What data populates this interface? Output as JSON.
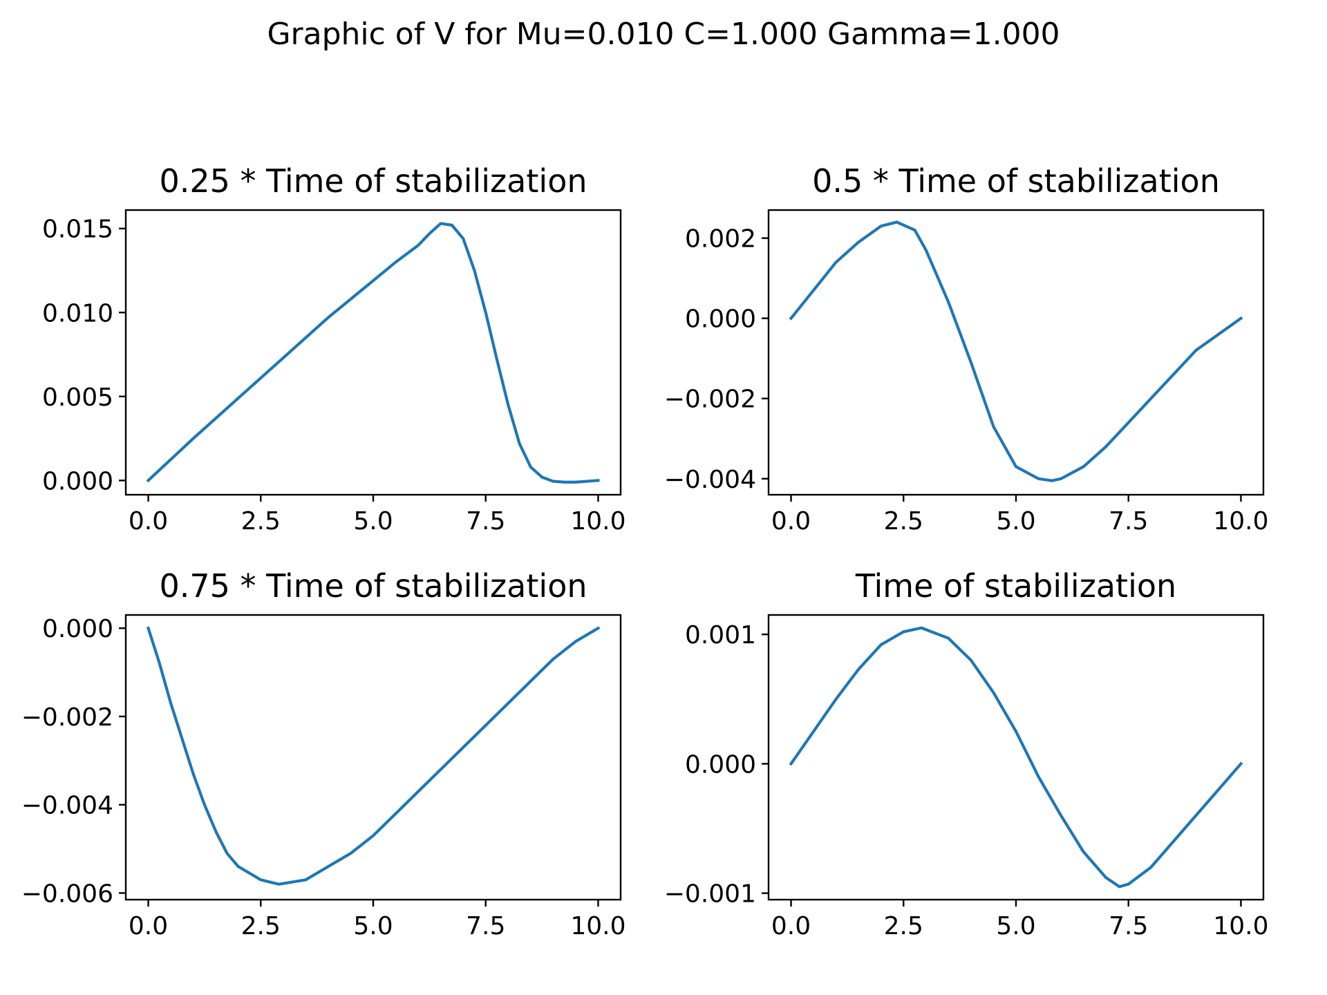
{
  "figure": {
    "suptitle": "Graphic of V for Mu=0.010 C=1.000 Gamma=1.000"
  },
  "chart_data": [
    {
      "type": "line",
      "title": "0.25 *  Time of stabilization",
      "xlabel": "",
      "ylabel": "",
      "xlim": [
        -0.5,
        10.5
      ],
      "ylim": [
        -0.00085,
        0.0161
      ],
      "xticks": [
        0.0,
        2.5,
        5.0,
        7.5,
        10.0
      ],
      "xtick_labels": [
        "0.0",
        "2.5",
        "5.0",
        "7.5",
        "10.0"
      ],
      "yticks": [
        0.0,
        0.005,
        0.01,
        0.015
      ],
      "ytick_labels": [
        "0.000",
        "0.005",
        "0.010",
        "0.015"
      ],
      "grid": false,
      "color": "#1f77b4",
      "x": [
        0,
        0.5,
        1,
        1.5,
        2,
        2.5,
        3,
        3.5,
        4,
        4.5,
        5,
        5.5,
        6,
        6.25,
        6.5,
        6.75,
        7,
        7.25,
        7.5,
        7.75,
        8,
        8.25,
        8.5,
        8.75,
        9,
        9.25,
        9.5,
        9.75,
        10
      ],
      "y": [
        0.0,
        0.00125,
        0.0025,
        0.0037,
        0.0049,
        0.0061,
        0.0073,
        0.0085,
        0.0097,
        0.0108,
        0.0119,
        0.013,
        0.014,
        0.0147,
        0.0153,
        0.0152,
        0.0144,
        0.0125,
        0.01,
        0.0072,
        0.0045,
        0.0022,
        0.0008,
        0.0002,
        -5e-05,
        -0.0001,
        -0.0001,
        -5e-05,
        0.0
      ]
    },
    {
      "type": "line",
      "title": "0.5 *  Time of stabilization",
      "xlabel": "",
      "ylabel": "",
      "xlim": [
        -0.5,
        10.5
      ],
      "ylim": [
        -0.0044,
        0.0027
      ],
      "xticks": [
        0.0,
        2.5,
        5.0,
        7.5,
        10.0
      ],
      "xtick_labels": [
        "0.0",
        "2.5",
        "5.0",
        "7.5",
        "10.0"
      ],
      "yticks": [
        -0.004,
        -0.002,
        0.0,
        0.002
      ],
      "ytick_labels": [
        "−0.004",
        "−0.002",
        "0.000",
        "0.002"
      ],
      "grid": false,
      "color": "#1f77b4",
      "x": [
        0,
        0.5,
        1,
        1.5,
        2,
        2.35,
        2.75,
        3,
        3.5,
        4,
        4.5,
        5,
        5.5,
        5.8,
        6,
        6.5,
        7,
        7.5,
        8,
        8.5,
        9,
        9.5,
        10
      ],
      "y": [
        0.0,
        0.0007,
        0.0014,
        0.0019,
        0.0023,
        0.0024,
        0.0022,
        0.0017,
        0.0004,
        -0.0011,
        -0.0027,
        -0.0037,
        -0.004,
        -0.00405,
        -0.004,
        -0.0037,
        -0.0032,
        -0.0026,
        -0.002,
        -0.0014,
        -0.0008,
        -0.0004,
        0.0
      ]
    },
    {
      "type": "line",
      "title": "0.75 *  Time of stabilization",
      "xlabel": "",
      "ylabel": "",
      "xlim": [
        -0.5,
        10.5
      ],
      "ylim": [
        -0.00615,
        0.0003
      ],
      "xticks": [
        0.0,
        2.5,
        5.0,
        7.5,
        10.0
      ],
      "xtick_labels": [
        "0.0",
        "2.5",
        "5.0",
        "7.5",
        "10.0"
      ],
      "yticks": [
        -0.006,
        -0.004,
        -0.002,
        0.0
      ],
      "ytick_labels": [
        "−0.006",
        "−0.004",
        "−0.002",
        "0.000"
      ],
      "grid": false,
      "color": "#1f77b4",
      "x": [
        0,
        0.25,
        0.5,
        0.75,
        1,
        1.25,
        1.5,
        1.75,
        2,
        2.5,
        2.9,
        3.5,
        4,
        4.5,
        5,
        5.5,
        6,
        6.5,
        7,
        7.5,
        8,
        8.5,
        9,
        9.5,
        10
      ],
      "y": [
        0.0,
        -0.0008,
        -0.0017,
        -0.0025,
        -0.0033,
        -0.004,
        -0.0046,
        -0.0051,
        -0.0054,
        -0.0057,
        -0.0058,
        -0.0057,
        -0.0054,
        -0.0051,
        -0.0047,
        -0.0042,
        -0.0037,
        -0.0032,
        -0.0027,
        -0.0022,
        -0.0017,
        -0.0012,
        -0.0007,
        -0.0003,
        0.0
      ]
    },
    {
      "type": "line",
      "title": "Time of stabilization",
      "xlabel": "",
      "ylabel": "",
      "xlim": [
        -0.5,
        10.5
      ],
      "ylim": [
        -0.00105,
        0.00115
      ],
      "xticks": [
        0.0,
        2.5,
        5.0,
        7.5,
        10.0
      ],
      "xtick_labels": [
        "0.0",
        "2.5",
        "5.0",
        "7.5",
        "10.0"
      ],
      "yticks": [
        -0.001,
        0.0,
        0.001
      ],
      "ytick_labels": [
        "−0.001",
        "0.000",
        "0.001"
      ],
      "grid": false,
      "color": "#1f77b4",
      "x": [
        0,
        0.5,
        1,
        1.5,
        2,
        2.5,
        2.9,
        3.5,
        4,
        4.5,
        5,
        5.5,
        6,
        6.5,
        7,
        7.3,
        7.5,
        8,
        8.5,
        9,
        9.5,
        10
      ],
      "y": [
        0.0,
        0.00025,
        0.0005,
        0.00073,
        0.00092,
        0.00102,
        0.00105,
        0.00097,
        0.0008,
        0.00055,
        0.00025,
        -0.0001,
        -0.0004,
        -0.00068,
        -0.00088,
        -0.00095,
        -0.00093,
        -0.0008,
        -0.0006,
        -0.0004,
        -0.0002,
        0.0
      ]
    }
  ]
}
